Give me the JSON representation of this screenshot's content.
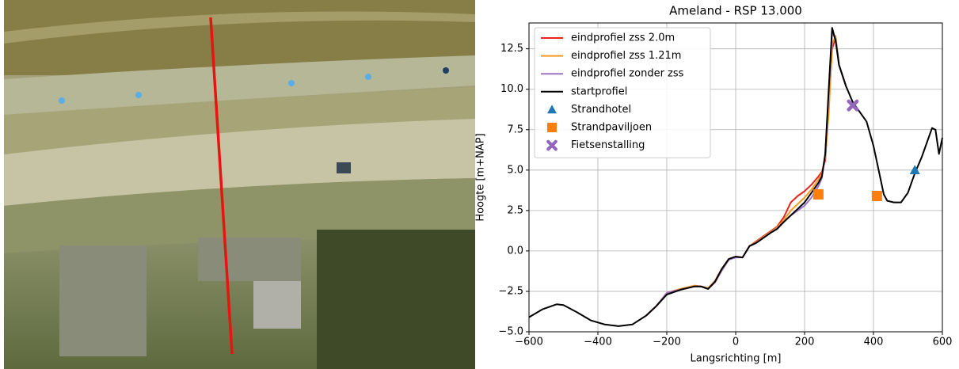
{
  "chart_data": {
    "type": "line",
    "title": "Ameland - RSP 13.000",
    "xlabel": "Langsrichting [m]",
    "ylabel": "Hoogte [m+NAP]",
    "xlim": [
      -600,
      600
    ],
    "ylim": [
      -5,
      14.1
    ],
    "xticks": [
      {
        "value": -600,
        "label": "−600"
      },
      {
        "value": -400,
        "label": "−400"
      },
      {
        "value": -200,
        "label": "−200"
      },
      0,
      200,
      400,
      600
    ],
    "yticks": [
      {
        "value": -5,
        "label": "−5.0"
      },
      {
        "value": -2.5,
        "label": "−2.5"
      },
      {
        "value": 0,
        "label": "0.0"
      },
      2.5,
      {
        "value": 5,
        "label": "5.0"
      },
      7.5,
      {
        "value": 10,
        "label": "10.0"
      },
      12.5
    ],
    "grid": true,
    "legend": "upper left",
    "x": [
      -600,
      -560,
      -520,
      -500,
      -460,
      -420,
      -380,
      -340,
      -300,
      -260,
      -230,
      -200,
      -160,
      -120,
      -100,
      -80,
      -60,
      -40,
      -20,
      0,
      20,
      40,
      60,
      80,
      100,
      120,
      140,
      160,
      180,
      200,
      220,
      240,
      250,
      260,
      270,
      280,
      290,
      300,
      320,
      340,
      360,
      380,
      400,
      420,
      430,
      440,
      460,
      480,
      500,
      520,
      540,
      560,
      570,
      580,
      590,
      600
    ],
    "series": [
      {
        "name": "eindprofiel zss 2.0m",
        "color": "#e8231c",
        "values": [
          null,
          null,
          null,
          null,
          null,
          null,
          null,
          null,
          null,
          -4.0,
          -3.4,
          -2.6,
          -2.35,
          -2.15,
          -2.2,
          -2.3,
          -1.85,
          -1.1,
          -0.5,
          -0.35,
          -0.4,
          0.3,
          0.6,
          0.9,
          1.2,
          1.5,
          2.1,
          3.0,
          3.4,
          3.7,
          4.1,
          4.6,
          4.9,
          5.6,
          9.0,
          12.5,
          13.2,
          11.5,
          10.2,
          null,
          null,
          null,
          null,
          null,
          null,
          null,
          null,
          null,
          null,
          null,
          null,
          null,
          null,
          null,
          null,
          null
        ]
      },
      {
        "name": "eindprofiel zss 1.21m",
        "color": "#f39a1e",
        "values": [
          null,
          null,
          null,
          null,
          null,
          null,
          null,
          null,
          null,
          -4.0,
          -3.4,
          -2.65,
          -2.35,
          -2.15,
          -2.2,
          -2.3,
          -1.85,
          -1.1,
          -0.5,
          -0.35,
          -0.4,
          0.3,
          0.55,
          0.85,
          1.15,
          1.45,
          1.9,
          2.5,
          2.9,
          3.3,
          3.8,
          4.4,
          4.8,
          5.8,
          8.5,
          12.8,
          13.3,
          11.5,
          10.2,
          null,
          null,
          null,
          null,
          null,
          null,
          null,
          null,
          null,
          null,
          null,
          null,
          null,
          null,
          null,
          null,
          null
        ]
      },
      {
        "name": "eindprofiel zonder zss",
        "color": "#9b74c6",
        "values": [
          null,
          null,
          null,
          null,
          null,
          null,
          null,
          null,
          null,
          -4.0,
          -3.4,
          -2.6,
          -2.4,
          -2.2,
          -2.2,
          -2.35,
          -1.95,
          -1.2,
          -0.55,
          -0.4,
          -0.4,
          0.3,
          0.5,
          0.8,
          1.1,
          1.4,
          1.8,
          2.2,
          2.5,
          2.8,
          3.3,
          4.0,
          4.5,
          6.0,
          9.8,
          13.5,
          13.1,
          11.5,
          10.2,
          null,
          null,
          null,
          null,
          null,
          null,
          null,
          null,
          null,
          null,
          null,
          null,
          null,
          null,
          null,
          null,
          null
        ]
      },
      {
        "name": "startprofiel",
        "color": "#000000",
        "values": [
          -4.1,
          -3.6,
          -3.3,
          -3.35,
          -3.8,
          -4.3,
          -4.55,
          -4.65,
          -4.55,
          -4.0,
          -3.4,
          -2.7,
          -2.4,
          -2.2,
          -2.2,
          -2.35,
          -1.9,
          -1.1,
          -0.5,
          -0.35,
          -0.4,
          0.3,
          0.5,
          0.8,
          1.1,
          1.35,
          1.8,
          2.2,
          2.6,
          3.0,
          3.6,
          4.2,
          4.6,
          6.0,
          10.0,
          13.8,
          13.0,
          11.5,
          10.2,
          9.2,
          8.6,
          8.0,
          6.5,
          4.5,
          3.5,
          3.1,
          3.0,
          3.0,
          3.6,
          4.8,
          5.8,
          7.0,
          7.6,
          7.5,
          6.0,
          7.0
        ]
      }
    ],
    "markers": [
      {
        "name": "Strandhotel",
        "color": "#1f77b4",
        "marker": "triangle",
        "x": [
          520
        ],
        "y": [
          5.0
        ]
      },
      {
        "name": "Strandpaviljoen",
        "color": "#ff7f0e",
        "marker": "square",
        "x": [
          240,
          410
        ],
        "y": [
          3.5,
          3.4
        ]
      },
      {
        "name": "Fietsenstalling",
        "color": "#9467bd",
        "marker": "cross",
        "x": [
          340
        ],
        "y": [
          9.0
        ]
      }
    ]
  }
}
